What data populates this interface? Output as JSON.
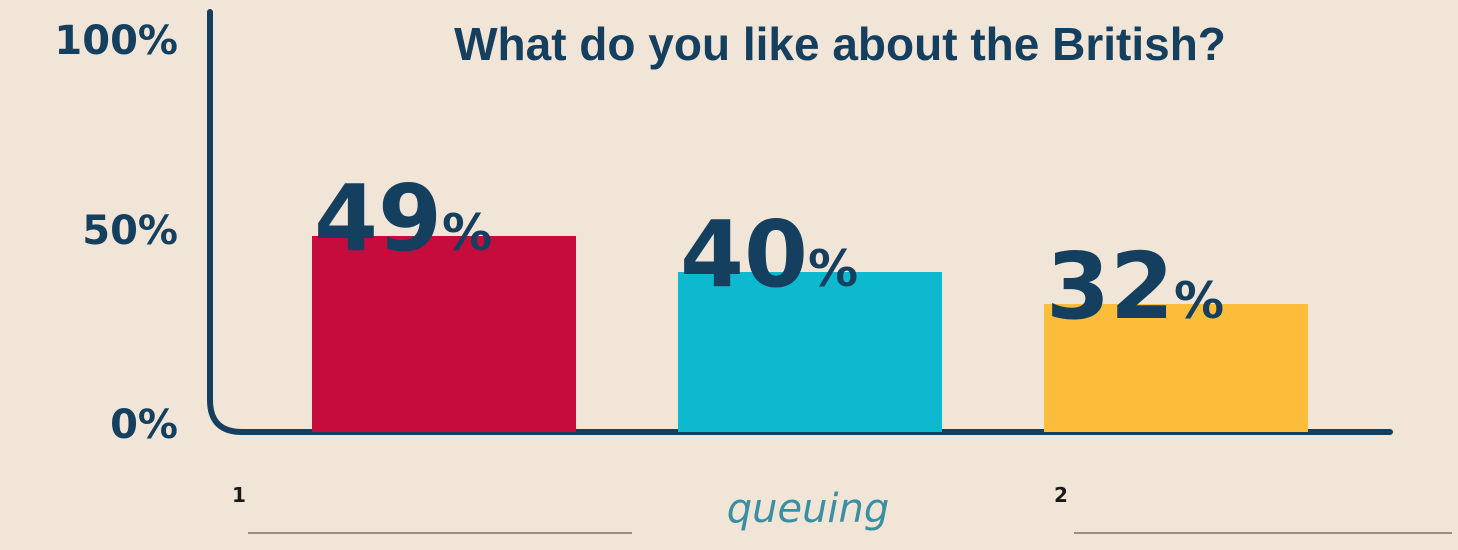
{
  "chart_data": {
    "type": "bar",
    "title": "What do you like about the British?",
    "ylim": [
      0,
      100
    ],
    "yticks": [
      "0%",
      "50%",
      "100%"
    ],
    "values": [
      49,
      40,
      32
    ],
    "value_labels": [
      {
        "number": "49",
        "unit": "%"
      },
      {
        "number": "40",
        "unit": "%"
      },
      {
        "number": "32",
        "unit": "%"
      }
    ],
    "colors": [
      "#c60c3c",
      "#0db9cf",
      "#fbbd3a"
    ],
    "categories": [
      {
        "marker": "1",
        "answer": ""
      },
      {
        "marker": "",
        "answer": "queuing"
      },
      {
        "marker": "2",
        "answer": ""
      }
    ],
    "grid": false
  }
}
